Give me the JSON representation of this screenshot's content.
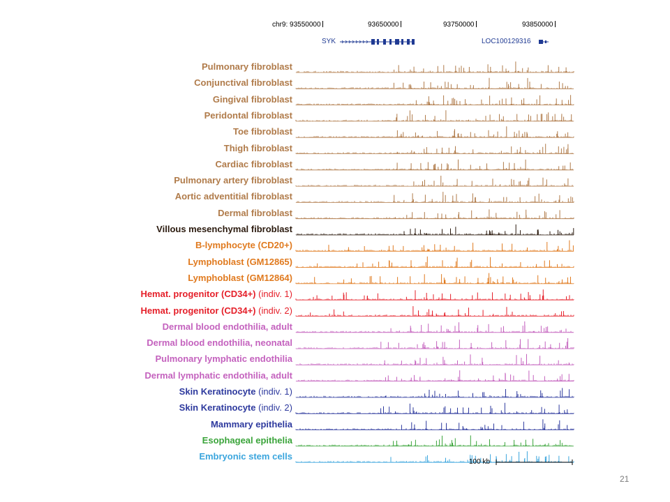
{
  "coordinates": {
    "c1": "chr9: 93550000",
    "c2": "93650000",
    "c3": "93750000",
    "c4": "93850000"
  },
  "genes": {
    "g1": "SYK",
    "g2": "LOC100129316"
  },
  "tracks": [
    {
      "label": "Pulmonary fibroblast",
      "note": "",
      "color": "#b07b4a"
    },
    {
      "label": "Conjunctival fibroblast",
      "note": "",
      "color": "#b07b4a"
    },
    {
      "label": "Gingival fibroblast",
      "note": "",
      "color": "#b07b4a"
    },
    {
      "label": "Peridontal fibroblast",
      "note": "",
      "color": "#b07b4a"
    },
    {
      "label": "Toe fibroblast",
      "note": "",
      "color": "#b07b4a"
    },
    {
      "label": "Thigh fibroblast",
      "note": "",
      "color": "#b07b4a"
    },
    {
      "label": "Cardiac fibroblast",
      "note": "",
      "color": "#b07b4a"
    },
    {
      "label": "Pulmonary artery fibroblast",
      "note": "",
      "color": "#b07b4a"
    },
    {
      "label": "Aortic adventitial fibroblast",
      "note": "",
      "color": "#b07b4a"
    },
    {
      "label": "Dermal fibroblast",
      "note": "",
      "color": "#b07b4a"
    },
    {
      "label": "Villous mesenchymal fibroblast",
      "note": "",
      "color": "#2b1a0e"
    },
    {
      "label": "B-lymphocyte (CD20+)",
      "note": "",
      "color": "#e07a1f"
    },
    {
      "label": "Lymphoblast (GM12865)",
      "note": "",
      "color": "#e07a1f"
    },
    {
      "label": "Lymphoblast (GM12864)",
      "note": "",
      "color": "#e07a1f"
    },
    {
      "label": "Hemat. progenitor (CD34+)",
      "note": " (indiv. 1)",
      "color": "#e5202a"
    },
    {
      "label": "Hemat. progenitor (CD34+)",
      "note": " (indiv. 2)",
      "color": "#e5202a"
    },
    {
      "label": "Dermal blood endothilia, adult",
      "note": "",
      "color": "#c462be"
    },
    {
      "label": "Dermal blood endothilia, neonatal",
      "note": "",
      "color": "#c462be"
    },
    {
      "label": "Pulmonary lymphatic endothilia",
      "note": "",
      "color": "#c462be"
    },
    {
      "label": "Dermal lymphatic endothilia, adult",
      "note": "",
      "color": "#c462be"
    },
    {
      "label": "Skin Keratinocyte",
      "note": " (indiv. 1)",
      "color": "#2e3a9e"
    },
    {
      "label": "Skin Keratinocyte",
      "note": " (indiv. 2)",
      "color": "#2e3a9e"
    },
    {
      "label": "Mammary epithelia",
      "note": "",
      "color": "#2e3a9e"
    },
    {
      "label": "Esophageal epithelia",
      "note": "",
      "color": "#3aa43a"
    },
    {
      "label": "Embryonic stem cells",
      "note": "",
      "color": "#3aa5dd"
    }
  ],
  "scale_bar": "100 kb",
  "page_number": "21"
}
